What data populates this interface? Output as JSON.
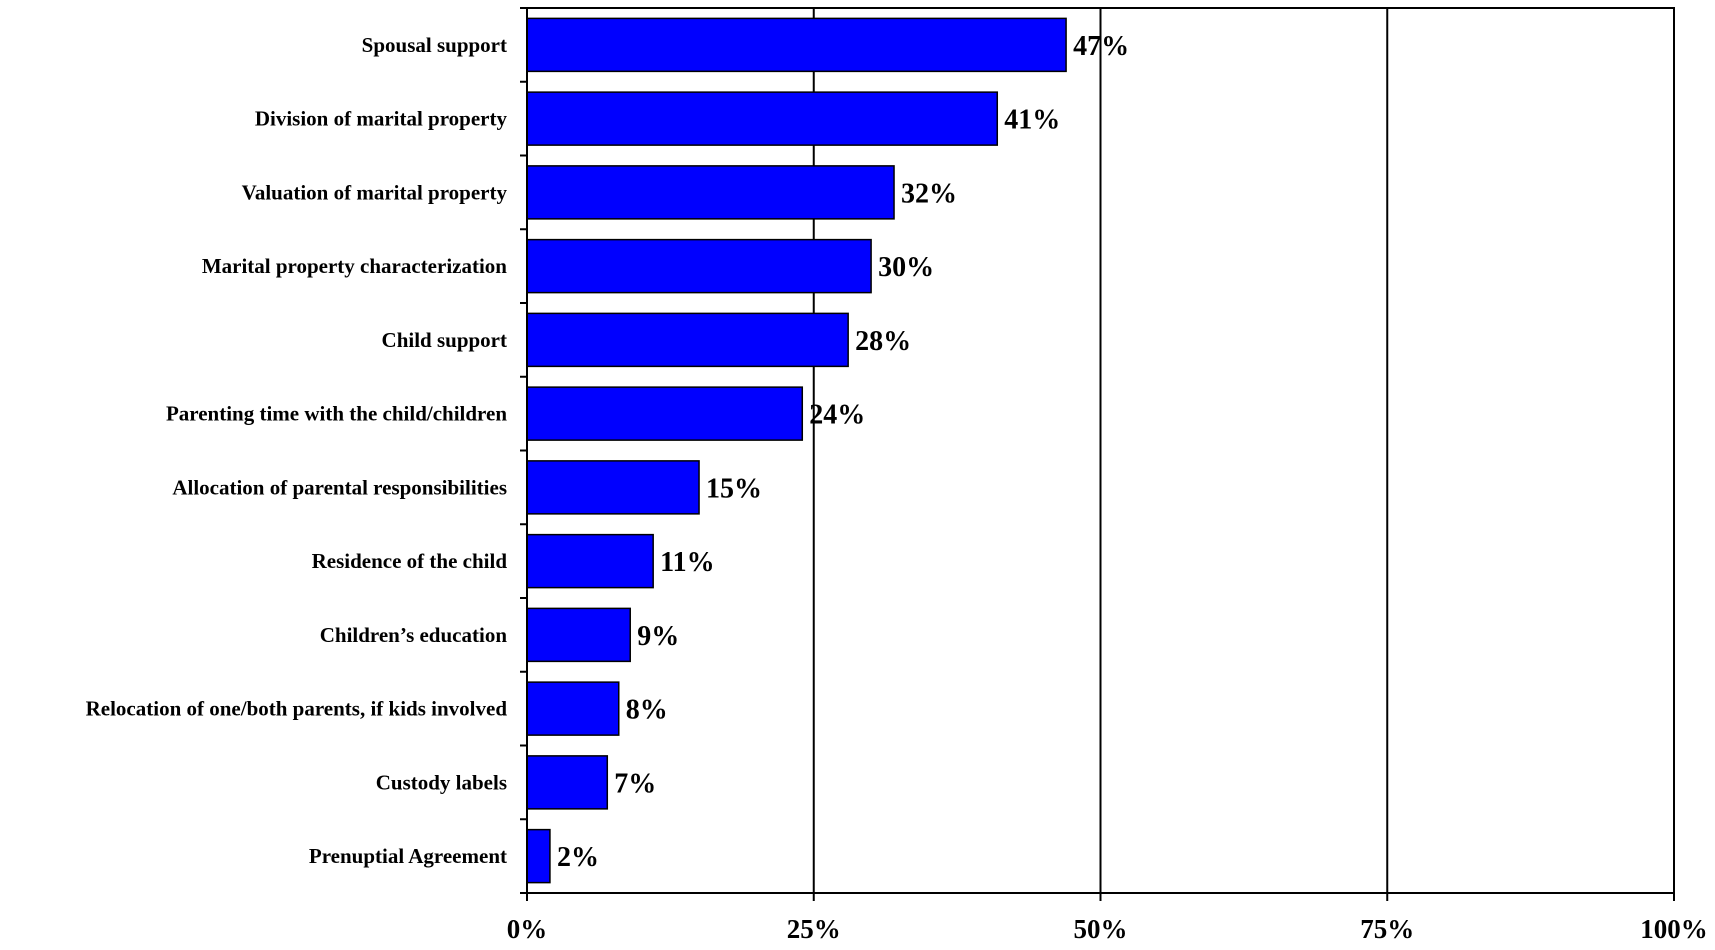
{
  "chart_data": {
    "type": "bar",
    "orientation": "horizontal",
    "categories": [
      "Spousal support",
      "Division of marital property",
      "Valuation of marital property",
      "Marital property characterization",
      "Child support",
      "Parenting time with the child/children",
      "Allocation of parental responsibilities",
      "Residence of the child",
      "Children’s education",
      "Relocation of one/both parents, if kids involved",
      "Custody labels",
      "Prenuptial Agreement"
    ],
    "values": [
      47,
      41,
      32,
      30,
      28,
      24,
      15,
      11,
      9,
      8,
      7,
      2
    ],
    "data_labels": [
      "47%",
      "41%",
      "32%",
      "30%",
      "28%",
      "24%",
      "15%",
      "11%",
      "9%",
      "8%",
      "7%",
      "2%"
    ],
    "x_ticks": [
      0,
      25,
      50,
      75,
      100
    ],
    "x_tick_labels": [
      "0%",
      "25%",
      "50%",
      "75%",
      "100%"
    ],
    "xlim": [
      0,
      100
    ],
    "title": "",
    "xlabel": "",
    "ylabel": "",
    "grid": "vertical",
    "legend": "none",
    "bar_color": "#0000ff",
    "bar_edge_color": "#000000"
  }
}
